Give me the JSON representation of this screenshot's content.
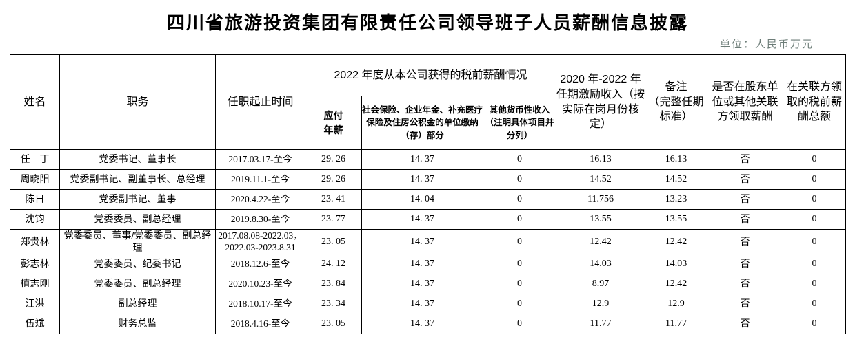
{
  "page": {
    "title": "四川省旅游投资集团有限责任公司领导班子人员薪酬信息披露",
    "unit_note": "单位：人民币万元",
    "unit_note_color": "#6d7d78",
    "text_color": "#000000",
    "background_color": "#ffffff"
  },
  "table": {
    "headers": {
      "name": "姓名",
      "position": "职务",
      "term": "任职起止时间",
      "salary_2022_group": "2022 年度从本公司获得的税前薪酬情况",
      "payable": "应付\n年薪",
      "insurance": "社会保险、企业年金、补充医疗保险及住房公积金的单位缴纳（存）部分",
      "other": "其他货币性收入（注明具体项目并分列）",
      "incentive": "2020 年-2022 年任期激励收入（按实际在岗月份核定）",
      "remark": "备注\n（完整任期标准）",
      "related_pay": "是否在股东单位或其他关联方领取薪酬",
      "related_total": "在关联方领取的税前薪酬总额"
    },
    "rows": [
      {
        "name": "任　丁",
        "position": "党委书记、董事长",
        "term": "2017.03.17-至今",
        "payable": "29. 26",
        "insurance": "14. 37",
        "other": "0",
        "incentive": "16.13",
        "remark": "16.13",
        "related_pay": "否",
        "related_total": "0"
      },
      {
        "name": "周晓阳",
        "position": "党委副书记、副董事长、总经理",
        "term": "2019.11.1-至今",
        "payable": "29. 26",
        "insurance": "14. 37",
        "other": "0",
        "incentive": "14.52",
        "remark": "14.52",
        "related_pay": "否",
        "related_total": "0"
      },
      {
        "name": "陈日",
        "position": "党委副书记、董事",
        "term": "2020.4.22-至今",
        "payable": "23. 41",
        "insurance": "14. 04",
        "other": "0",
        "incentive": "11.756",
        "remark": "13.23",
        "related_pay": "否",
        "related_total": "0"
      },
      {
        "name": "沈钧",
        "position": "党委委员、副总经理",
        "term": "2019.8.30-至今",
        "payable": "23. 77",
        "insurance": "14. 37",
        "other": "0",
        "incentive": "13.55",
        "remark": "13.55",
        "related_pay": "否",
        "related_total": "0"
      },
      {
        "name": "郑贵林",
        "position": "党委委员、董事/党委委员、副总经理",
        "term": "2017.08.08-2022.03，\n2022.03-2023.8.31",
        "payable": "23. 05",
        "insurance": "14. 37",
        "other": "0",
        "incentive": "12.42",
        "remark": "12.42",
        "related_pay": "否",
        "related_total": "0"
      },
      {
        "name": "彭志林",
        "position": "党委委员、纪委书记",
        "term": "2018.12.6-至今",
        "payable": "24. 12",
        "insurance": "14. 37",
        "other": "0",
        "incentive": "14.03",
        "remark": "14.03",
        "related_pay": "否",
        "related_total": "0"
      },
      {
        "name": "植志刚",
        "position": "党委委员、副总经理",
        "term": "2020.10.23-至今",
        "payable": "23. 84",
        "insurance": "14. 37",
        "other": "0",
        "incentive": "8.97",
        "remark": "12.42",
        "related_pay": "否",
        "related_total": "0"
      },
      {
        "name": "汪洪",
        "position": "副总经理",
        "term": "2018.10.17-至今",
        "payable": "23. 34",
        "insurance": "14. 37",
        "other": "0",
        "incentive": "12.9",
        "remark": "12.9",
        "related_pay": "否",
        "related_total": "0"
      },
      {
        "name": "伍斌",
        "position": "财务总监",
        "term": "2018.4.16-至今",
        "payable": "23. 05",
        "insurance": "14. 37",
        "other": "0",
        "incentive": "11.77",
        "remark": "11.77",
        "related_pay": "否",
        "related_total": "0"
      }
    ]
  }
}
